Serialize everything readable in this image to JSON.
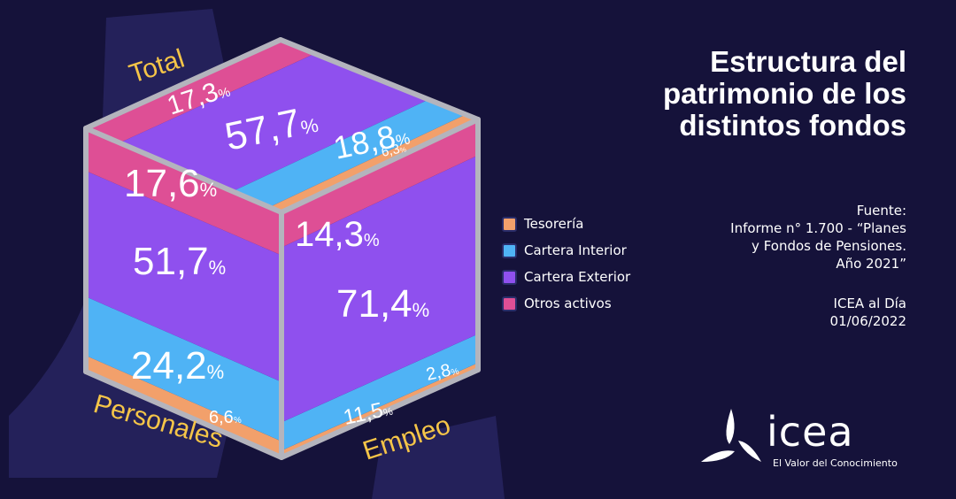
{
  "title_lines": [
    "Estructura del",
    "patrimonio de los",
    "distintos fondos"
  ],
  "source": {
    "lines": [
      "Fuente:",
      "Informe n° 1.700 - “Planes",
      "y Fondos de Pensiones.",
      "Año 2021”"
    ]
  },
  "publisher": {
    "lines": [
      "ICEA al Día",
      "01/06/2022"
    ]
  },
  "logo": {
    "name": "icea",
    "tagline": "El Valor del Conocimiento"
  },
  "colors": {
    "background": "#15123a",
    "Tesorería": "#f2a06b",
    "Cartera Interior": "#4fb3f5",
    "Cartera Exterior": "#8f50ee",
    "Otros activos": "#de4f95",
    "label_yellow": "#f5c548",
    "cube_edge": "#b4b4bd"
  },
  "chart_data": {
    "type": "bar",
    "stacked": true,
    "percent_sign": "%",
    "categories": [
      "Total",
      "Personales",
      "Empleo"
    ],
    "series": [
      {
        "name": "Tesorería",
        "values": [
          6.3,
          6.6,
          2.8
        ]
      },
      {
        "name": "Cartera Interior",
        "values": [
          18.8,
          24.2,
          11.5
        ]
      },
      {
        "name": "Cartera Exterior",
        "values": [
          57.7,
          51.7,
          71.4
        ]
      },
      {
        "name": "Otros activos",
        "values": [
          17.3,
          17.6,
          14.3
        ]
      }
    ],
    "legend": {
      "placement": "right-of-chart",
      "items": [
        "Tesorería",
        "Cartera Interior",
        "Cartera Exterior",
        "Otros activos"
      ]
    }
  }
}
